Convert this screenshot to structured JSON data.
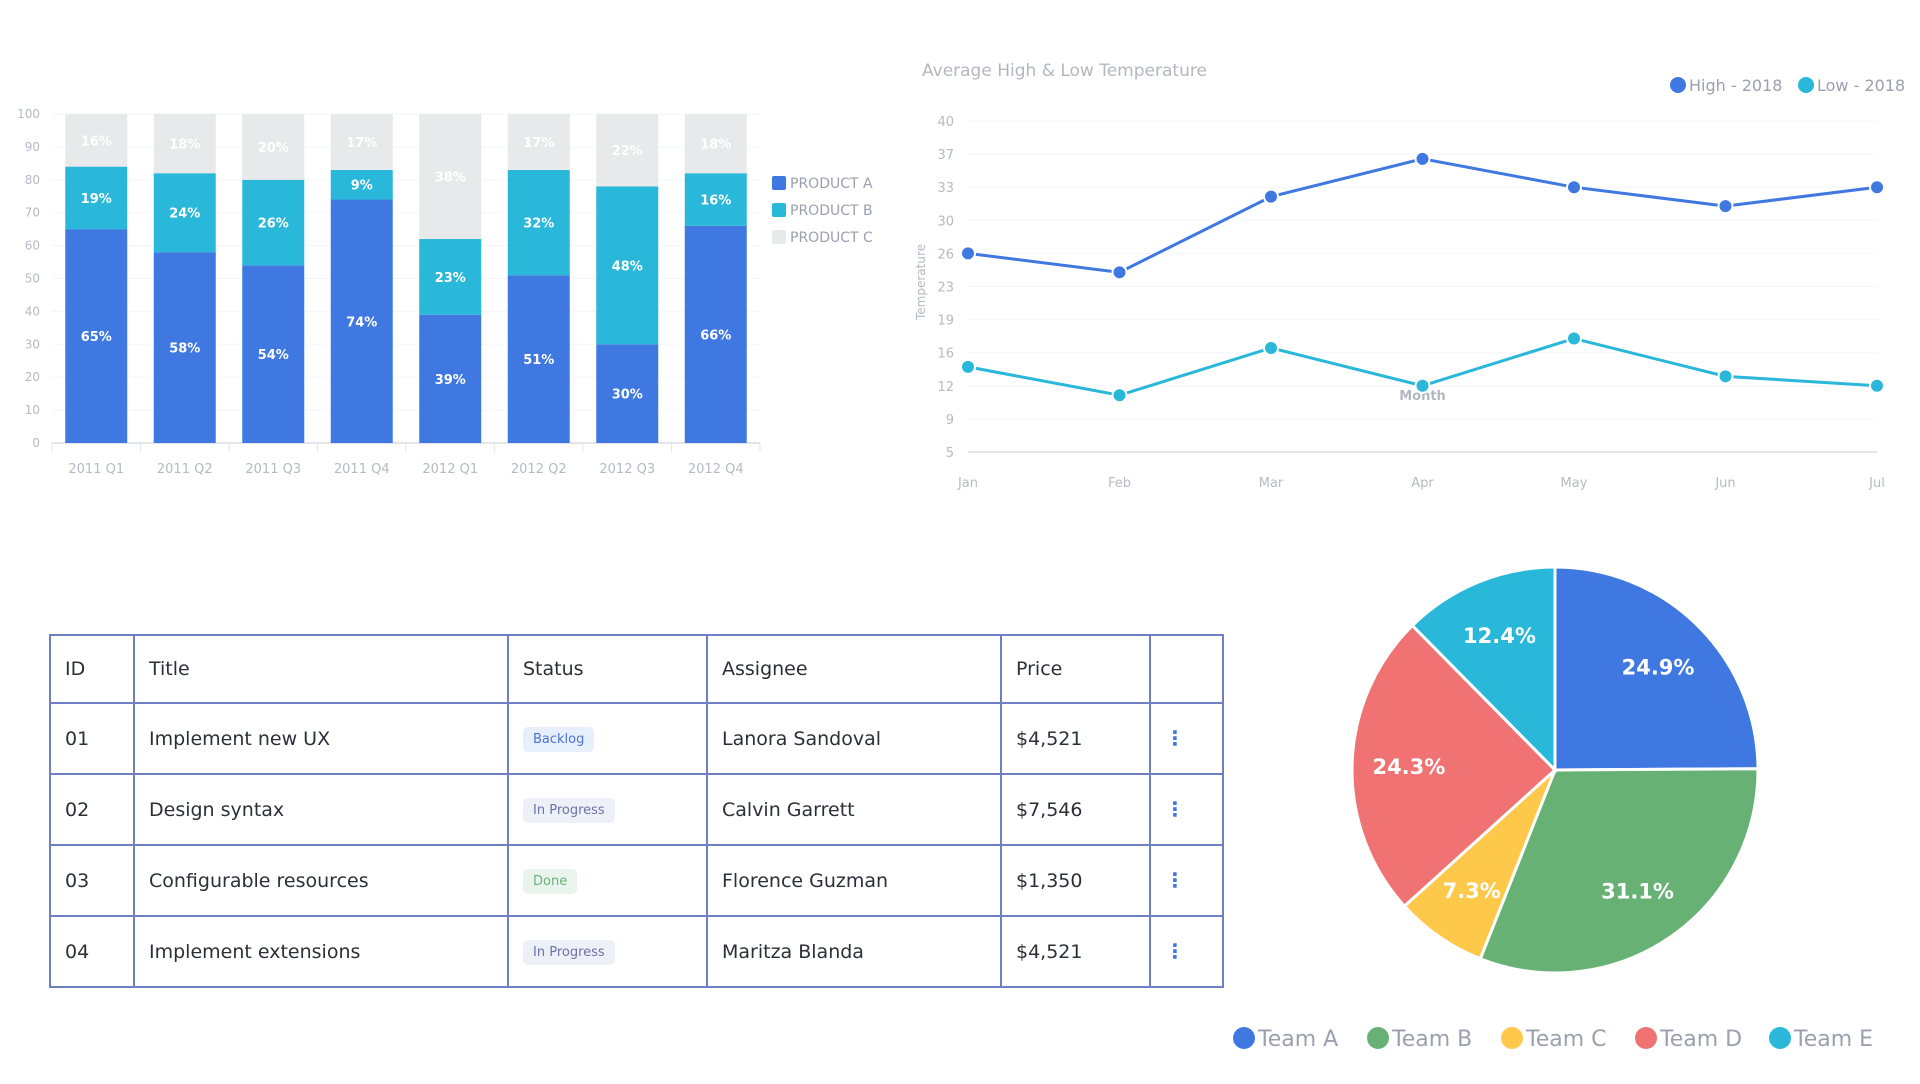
{
  "colors": {
    "product_a": "#3f78e0",
    "product_b": "#29b8da",
    "product_c": "#e8e9eb",
    "high": "#3f78e0",
    "low": "#29b8da",
    "team_a": "#3f78e0",
    "team_b": "#68b174",
    "team_c": "#fec84b",
    "team_d": "#f07272",
    "team_e": "#29b8da",
    "table_border": "#6f7fc4"
  },
  "chart_data": [
    {
      "type": "bar",
      "stacked": true,
      "title": "",
      "categories": [
        "2011 Q1",
        "2011 Q2",
        "2011 Q3",
        "2011 Q4",
        "2012 Q1",
        "2012 Q2",
        "2012 Q3",
        "2012 Q4"
      ],
      "series": [
        {
          "name": "PRODUCT A",
          "values": [
            65,
            58,
            54,
            74,
            39,
            51,
            30,
            66
          ]
        },
        {
          "name": "PRODUCT B",
          "values": [
            19,
            24,
            26,
            9,
            23,
            32,
            48,
            16
          ]
        },
        {
          "name": "PRODUCT C",
          "values": [
            16,
            18,
            20,
            17,
            38,
            17,
            22,
            18
          ]
        }
      ],
      "value_suffix": "%",
      "ylim": [
        0,
        100
      ],
      "yticks": [
        0,
        10,
        20,
        30,
        40,
        50,
        60,
        70,
        80,
        90,
        100
      ],
      "xlabel": "",
      "ylabel": "",
      "grid": true,
      "legend": "right"
    },
    {
      "type": "line",
      "title": "Average High & Low Temperature",
      "x": [
        "Jan",
        "Feb",
        "Mar",
        "Apr",
        "May",
        "Jun",
        "Jul"
      ],
      "series": [
        {
          "name": "High - 2018",
          "values": [
            26,
            24,
            32,
            36,
            33,
            31,
            33
          ]
        },
        {
          "name": "Low - 2018",
          "values": [
            14,
            11,
            16,
            12,
            17,
            13,
            12
          ]
        }
      ],
      "xlabel": "Month",
      "ylabel": "Temperature",
      "ylim": [
        5,
        40
      ],
      "yticks": [
        "5",
        "9",
        "12",
        "16",
        "19",
        "23",
        "26",
        "30",
        "33",
        "37",
        "40"
      ],
      "grid": true,
      "legend": "top-right"
    },
    {
      "type": "pie",
      "title": "",
      "labels": [
        "Team A",
        "Team B",
        "Team C",
        "Team D",
        "Team E"
      ],
      "values": [
        24.9,
        31.1,
        7.3,
        24.3,
        12.4
      ],
      "value_suffix": "%",
      "legend": "bottom"
    }
  ],
  "table": {
    "headers": [
      "ID",
      "Title",
      "Status",
      "Assignee",
      "Price",
      ""
    ],
    "rows": [
      {
        "id": "01",
        "title": "Implement new UX",
        "status": "Backlog",
        "assignee": "Lanora Sandoval",
        "price": "$4,521"
      },
      {
        "id": "02",
        "title": "Design syntax",
        "status": "In Progress",
        "assignee": "Calvin Garrett",
        "price": "$7,546"
      },
      {
        "id": "03",
        "title": "Configurable resources",
        "status": "Done",
        "assignee": "Florence Guzman",
        "price": "$1,350"
      },
      {
        "id": "04",
        "title": "Implement extensions",
        "status": "In Progress",
        "assignee": "Maritza Blanda",
        "price": "$4,521"
      }
    ],
    "action_icon": "more-vertical-icon",
    "action_glyph": "⋮"
  }
}
